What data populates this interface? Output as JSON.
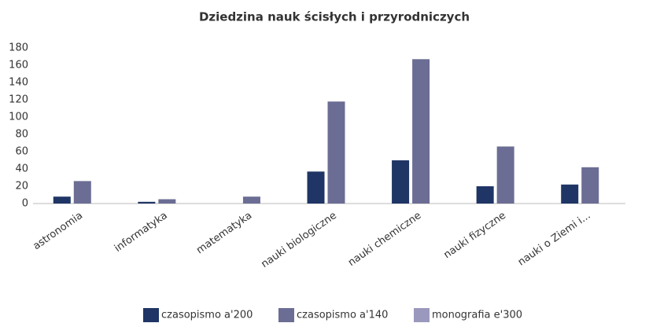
{
  "chart_data": {
    "type": "bar",
    "title": "Dziedzina nauk ścisłych i przyrodniczych",
    "categories": [
      "astronomia",
      "informatyka",
      "matematyka",
      "nauki biologiczne",
      "nauki chemiczne",
      "nauki fizyczne",
      "nauki o Ziemi i..."
    ],
    "series": [
      {
        "name": "czasopismo a'200",
        "color": "#1f3566",
        "values": [
          8,
          2,
          0,
          37,
          50,
          20,
          22
        ]
      },
      {
        "name": "czasopismo a'140",
        "color": "#6b6d94",
        "values": [
          26,
          5,
          8,
          118,
          167,
          66,
          42
        ]
      },
      {
        "name": "monografia e'300",
        "color": "#9a99bd",
        "values": [
          0,
          0,
          0,
          0,
          0,
          0,
          0
        ]
      }
    ],
    "ylim": [
      0,
      180
    ],
    "yticks": [
      0,
      20,
      40,
      60,
      80,
      100,
      120,
      140,
      160,
      180
    ],
    "grid": false,
    "legend": "bottom"
  }
}
